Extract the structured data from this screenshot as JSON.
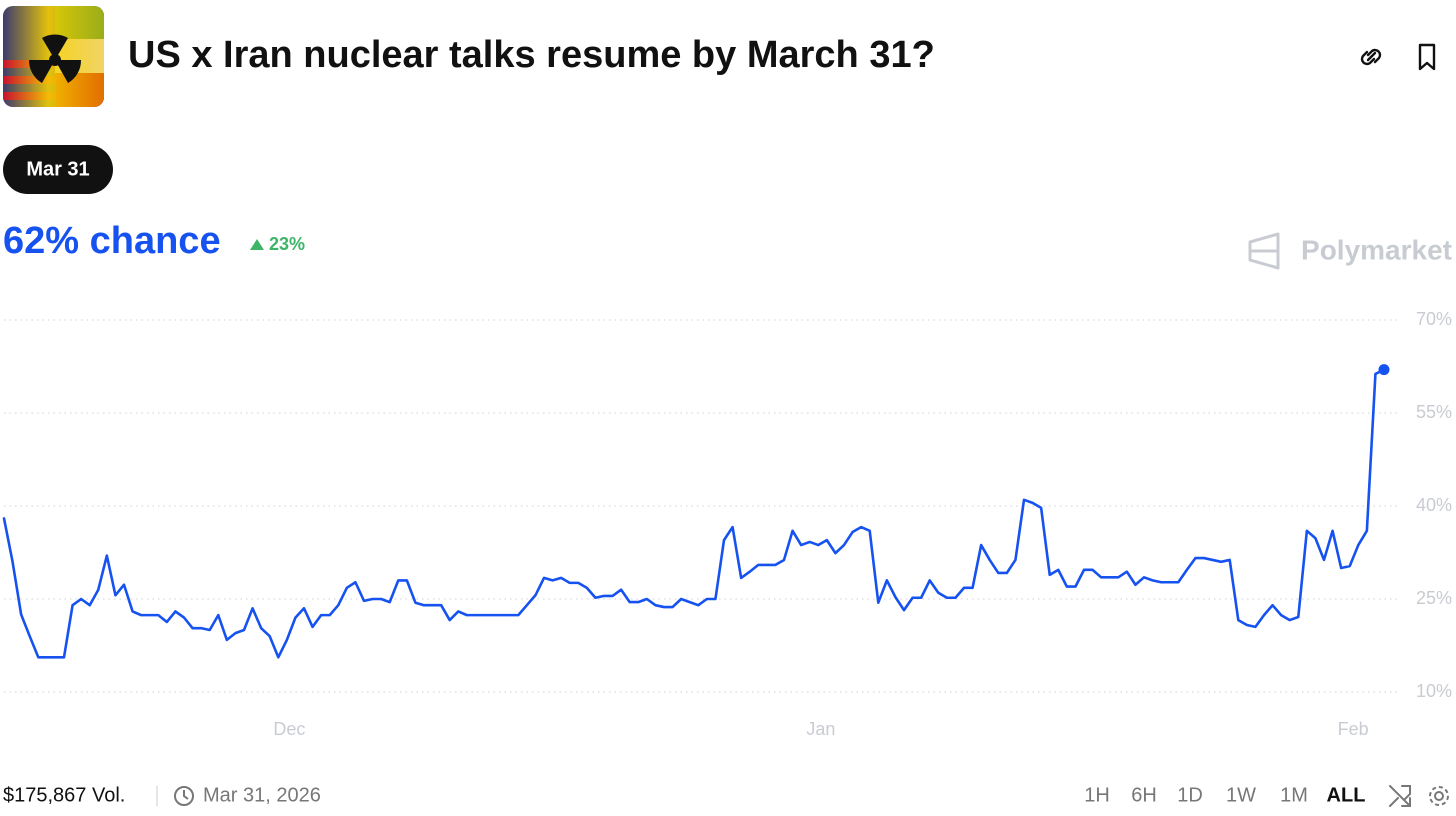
{
  "header": {
    "title": "US x Iran nuclear talks resume by March 31?",
    "outcome": "Mar 31",
    "chance": "62% chance",
    "change": "23%",
    "brand": "Polymarket"
  },
  "chart_data": {
    "type": "line",
    "series": [
      {
        "color": "#1652f0",
        "values": [
          38,
          31,
          22.5,
          19,
          15.6,
          15.6,
          15.6,
          15.6,
          24,
          25,
          24,
          26.5,
          32,
          25.6,
          27.3,
          23,
          22.4,
          22.4,
          22.4,
          21.3,
          23,
          22,
          20.3,
          20.3,
          20,
          22.4,
          18.4,
          19.5,
          20,
          23.5,
          20.3,
          19,
          15.6,
          18.4,
          22,
          23.5,
          20.5,
          22.4,
          22.4,
          24,
          26.8,
          27.7,
          24.7,
          25,
          25,
          24.5,
          28,
          28,
          24.4,
          24,
          24,
          24,
          21.6,
          23,
          22.4,
          22.4,
          22.4,
          22.4,
          22.4,
          22.4,
          22.4,
          24,
          25.6,
          28.4,
          28,
          28.4,
          27.6,
          27.6,
          26.8,
          25.2,
          25.5,
          25.5,
          26.5,
          24.5,
          24.5,
          25,
          24,
          23.7,
          23.7,
          25,
          24.5,
          24,
          25,
          25,
          34.5,
          36.6,
          28.4,
          29.4,
          30.5,
          30.5,
          30.5,
          31.3,
          36,
          33.7,
          34.2,
          33.7,
          34.5,
          32.4,
          33.7,
          35.8,
          36.6,
          36,
          24.4,
          28,
          25.3,
          23.2,
          25.2,
          25.2,
          28,
          26,
          25.2,
          25.2,
          26.8,
          26.8,
          33.7,
          31.3,
          29.2,
          29.2,
          31.3,
          41,
          40.5,
          39.7,
          28.9,
          29.7,
          27,
          27,
          29.7,
          29.7,
          28.5,
          28.5,
          28.5,
          29.4,
          27.3,
          28.5,
          28,
          27.7,
          27.7,
          27.7,
          29.7,
          31.6,
          31.6,
          31.3,
          31,
          31.3,
          21.6,
          20.8,
          20.5,
          22.4,
          24,
          22.4,
          21.6,
          22.1,
          36,
          34.8,
          31.3,
          36,
          30,
          30.3,
          33.7,
          36,
          61.3,
          62
        ]
      }
    ],
    "xlim": [
      0,
      161
    ],
    "xticks": [
      {
        "value": 33.3,
        "label": "Dec"
      },
      {
        "value": 95.3,
        "label": "Jan"
      },
      {
        "value": 157.4,
        "label": "Feb"
      }
    ],
    "ylim": [
      7,
      73
    ],
    "yticks": [
      {
        "value": 10,
        "label": "10%"
      },
      {
        "value": 25,
        "label": "25%"
      },
      {
        "value": 40,
        "label": "40%"
      },
      {
        "value": 55,
        "label": "55%"
      },
      {
        "value": 70,
        "label": "70%"
      }
    ],
    "grid": true
  },
  "footer": {
    "volume": "$175,867 Vol.",
    "end_date": "Mar 31, 2026",
    "ranges": [
      "1H",
      "6H",
      "1D",
      "1W",
      "1M",
      "ALL"
    ]
  }
}
